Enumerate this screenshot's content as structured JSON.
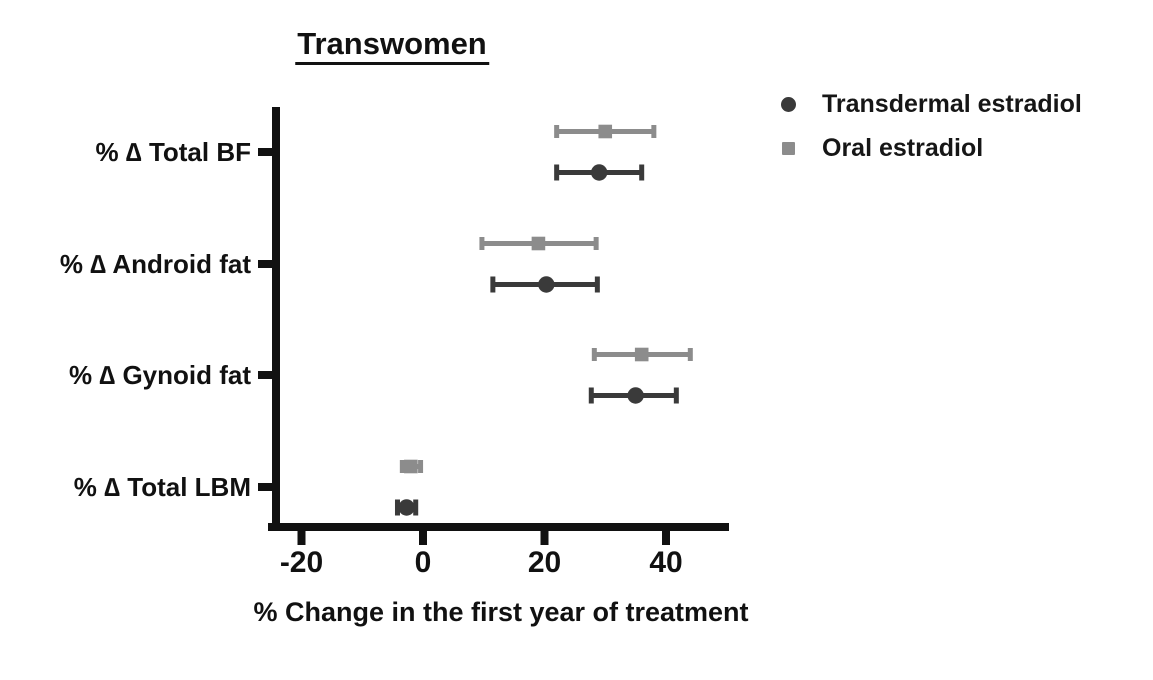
{
  "figure": {
    "background_color": "#ffffff",
    "text_color": "#111111",
    "axis_color": "#111111"
  },
  "chart_data": {
    "type": "scatter",
    "subtype": "horizontal-forest-plot-with-error-bars",
    "title": "Transwomen",
    "xlabel": "% Change in the first year of treatment",
    "ylabel": "",
    "xlim": [
      -25,
      51
    ],
    "xticks": [
      -20,
      0,
      20,
      40
    ],
    "grid": false,
    "legend_position": "top-right",
    "categories": [
      "% ∆ Total BF",
      "% ∆ Android fat",
      "% ∆ Gynoid fat",
      "% ∆ Total LBM"
    ],
    "series": [
      {
        "name": "Transdermal estradiol",
        "marker": "circle",
        "color": "#3a3a3a",
        "means": [
          29,
          20.3,
          35,
          -2.7
        ],
        "lower": [
          22,
          11.5,
          27.7,
          -4.2
        ],
        "upper": [
          36,
          28.7,
          41.7,
          -1.2
        ]
      },
      {
        "name": "Oral estradiol",
        "marker": "square",
        "color": "#8c8c8c",
        "means": [
          30,
          19,
          36,
          -2
        ],
        "lower": [
          22,
          9.7,
          28.2,
          -3.4
        ],
        "upper": [
          38,
          28.5,
          44,
          -0.4
        ]
      }
    ]
  }
}
